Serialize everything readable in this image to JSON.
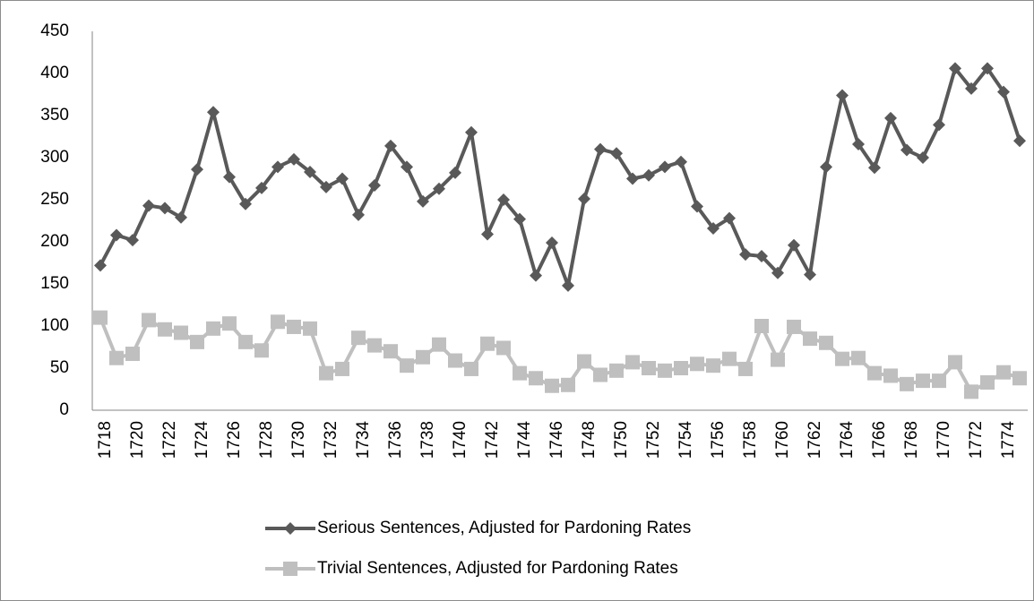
{
  "chart_data": {
    "type": "line",
    "categories": [
      "1718",
      null,
      "1720",
      null,
      "1722",
      null,
      "1724",
      null,
      "1726",
      null,
      "1728",
      null,
      "1730",
      null,
      "1732",
      null,
      "1734",
      null,
      "1736",
      null,
      "1738",
      null,
      "1740",
      null,
      "1742",
      null,
      "1744",
      null,
      "1746",
      null,
      "1748",
      null,
      "1750",
      null,
      "1752",
      null,
      "1754",
      null,
      "1756",
      null,
      "1758",
      null,
      "1760",
      null,
      "1762",
      null,
      "1764",
      null,
      "1766",
      null,
      "1768",
      null,
      "1770",
      null,
      "1772",
      null,
      "1774",
      null
    ],
    "series": [
      {
        "name": "Serious Sentences, Adjusted for Pardoning Rates",
        "color": "#595959",
        "marker": "diamond",
        "values": [
          172,
          208,
          202,
          243,
          240,
          229,
          286,
          354,
          277,
          245,
          264,
          289,
          298,
          283,
          265,
          275,
          232,
          267,
          314,
          289,
          248,
          263,
          282,
          330,
          209,
          250,
          227,
          160,
          199,
          148,
          251,
          310,
          305,
          275,
          279,
          289,
          295,
          242,
          216,
          228,
          185,
          183,
          163,
          196,
          161,
          289,
          374,
          316,
          288,
          347,
          309,
          300,
          339,
          406,
          382,
          406,
          378,
          320
        ]
      },
      {
        "name": "Trivial Sentences, Adjusted for Pardoning Rates",
        "color": "#bfbfbf",
        "marker": "square",
        "values": [
          110,
          62,
          67,
          107,
          96,
          92,
          81,
          97,
          103,
          81,
          71,
          105,
          99,
          97,
          44,
          49,
          86,
          77,
          70,
          53,
          63,
          78,
          59,
          49,
          79,
          74,
          44,
          38,
          29,
          30,
          58,
          42,
          47,
          57,
          50,
          47,
          50,
          55,
          53,
          61,
          49,
          100,
          60,
          99,
          85,
          80,
          61,
          62,
          44,
          41,
          31,
          35,
          35,
          57,
          22,
          33,
          45,
          38
        ]
      }
    ],
    "ylim": [
      0,
      450
    ],
    "yticks": [
      0,
      50,
      100,
      150,
      200,
      250,
      300,
      350,
      400,
      450
    ],
    "grid": false,
    "legend": "bottom"
  }
}
